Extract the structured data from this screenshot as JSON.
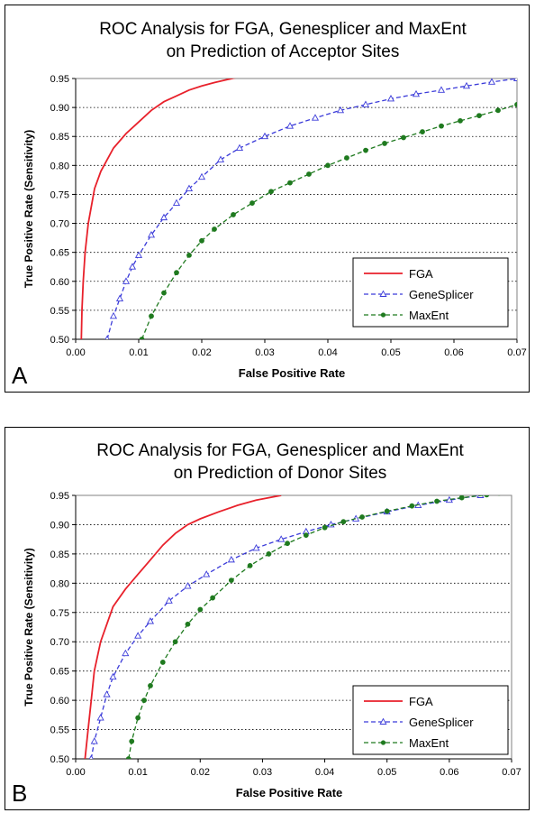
{
  "chart_data": [
    {
      "type": "line",
      "panel_label": "A",
      "title": [
        "ROC Analysis for FGA, Genesplicer and MaxEnt",
        "on Prediction of Acceptor Sites"
      ],
      "xlabel": "False Positive Rate",
      "ylabel": "True Positive Rate (Sensitivity)",
      "xlim": [
        0,
        0.07
      ],
      "ylim": [
        0.5,
        0.95
      ],
      "xticks": [
        "0.00",
        "0.01",
        "0.02",
        "0.03",
        "0.04",
        "0.05",
        "0.06",
        "0.07"
      ],
      "yticks": [
        "0.50",
        "0.55",
        "0.60",
        "0.65",
        "0.70",
        "0.75",
        "0.80",
        "0.85",
        "0.90",
        "0.95"
      ],
      "grid": "horizontal dotted",
      "legend": "bottom-right",
      "series": [
        {
          "name": "FGA",
          "color": "#e8212b",
          "marker": "none",
          "x": [
            0.0009,
            0.001,
            0.0012,
            0.0015,
            0.002,
            0.0025,
            0.003,
            0.004,
            0.005,
            0.006,
            0.008,
            0.01,
            0.012,
            0.014,
            0.016,
            0.018,
            0.02,
            0.022,
            0.024,
            0.026
          ],
          "y": [
            0.5,
            0.55,
            0.6,
            0.65,
            0.7,
            0.73,
            0.76,
            0.79,
            0.81,
            0.83,
            0.855,
            0.875,
            0.895,
            0.91,
            0.92,
            0.93,
            0.937,
            0.943,
            0.948,
            0.953
          ]
        },
        {
          "name": "GeneSplicer",
          "color": "#3b3bd9",
          "marker": "triangle",
          "x": [
            0.005,
            0.006,
            0.007,
            0.008,
            0.009,
            0.01,
            0.012,
            0.014,
            0.016,
            0.018,
            0.02,
            0.023,
            0.026,
            0.03,
            0.034,
            0.038,
            0.042,
            0.046,
            0.05,
            0.054,
            0.058,
            0.062,
            0.066,
            0.07
          ],
          "y": [
            0.5,
            0.54,
            0.57,
            0.6,
            0.625,
            0.645,
            0.68,
            0.71,
            0.735,
            0.76,
            0.78,
            0.81,
            0.83,
            0.85,
            0.868,
            0.882,
            0.895,
            0.905,
            0.915,
            0.923,
            0.93,
            0.937,
            0.944,
            0.95
          ]
        },
        {
          "name": "MaxEnt",
          "color": "#1f7a1f",
          "marker": "circle",
          "x": [
            0.0105,
            0.012,
            0.014,
            0.016,
            0.018,
            0.02,
            0.022,
            0.025,
            0.028,
            0.031,
            0.034,
            0.037,
            0.04,
            0.043,
            0.046,
            0.049,
            0.052,
            0.055,
            0.058,
            0.061,
            0.064,
            0.067,
            0.07
          ],
          "y": [
            0.5,
            0.54,
            0.58,
            0.615,
            0.645,
            0.67,
            0.69,
            0.715,
            0.735,
            0.755,
            0.77,
            0.785,
            0.8,
            0.813,
            0.826,
            0.838,
            0.848,
            0.858,
            0.868,
            0.877,
            0.886,
            0.895,
            0.905
          ]
        }
      ]
    },
    {
      "type": "line",
      "panel_label": "B",
      "title": [
        "ROC Analysis for FGA, Genesplicer and MaxEnt",
        "on Prediction of Donor Sites"
      ],
      "xlabel": "False Positive Rate",
      "ylabel": "True Positive Rate (Sensitivity)",
      "xlim": [
        0,
        0.07
      ],
      "ylim": [
        0.5,
        0.95
      ],
      "xticks": [
        "0.00",
        "0.01",
        "0.02",
        "0.03",
        "0.04",
        "0.05",
        "0.06",
        "0.07"
      ],
      "yticks": [
        "0.50",
        "0.55",
        "0.60",
        "0.65",
        "0.70",
        "0.75",
        "0.80",
        "0.85",
        "0.90",
        "0.95"
      ],
      "grid": "horizontal dotted",
      "legend": "bottom-right",
      "series": [
        {
          "name": "FGA",
          "color": "#e8212b",
          "marker": "none",
          "x": [
            0.0015,
            0.002,
            0.0025,
            0.003,
            0.004,
            0.005,
            0.006,
            0.008,
            0.01,
            0.012,
            0.014,
            0.016,
            0.018,
            0.02,
            0.023,
            0.026,
            0.029,
            0.033
          ],
          "y": [
            0.5,
            0.55,
            0.6,
            0.65,
            0.7,
            0.73,
            0.76,
            0.79,
            0.815,
            0.84,
            0.865,
            0.885,
            0.9,
            0.91,
            0.922,
            0.933,
            0.942,
            0.95
          ]
        },
        {
          "name": "GeneSplicer",
          "color": "#3b3bd9",
          "marker": "triangle",
          "x": [
            0.0025,
            0.003,
            0.004,
            0.005,
            0.006,
            0.008,
            0.01,
            0.012,
            0.015,
            0.018,
            0.021,
            0.025,
            0.029,
            0.033,
            0.037,
            0.041,
            0.045,
            0.05,
            0.055,
            0.06,
            0.065,
            0.068
          ],
          "y": [
            0.5,
            0.53,
            0.57,
            0.61,
            0.64,
            0.68,
            0.71,
            0.735,
            0.77,
            0.795,
            0.815,
            0.84,
            0.86,
            0.875,
            0.888,
            0.9,
            0.91,
            0.922,
            0.933,
            0.942,
            0.95,
            0.955
          ]
        },
        {
          "name": "MaxEnt",
          "color": "#1f7a1f",
          "marker": "circle",
          "x": [
            0.0085,
            0.009,
            0.01,
            0.011,
            0.012,
            0.014,
            0.016,
            0.018,
            0.02,
            0.022,
            0.025,
            0.028,
            0.031,
            0.034,
            0.037,
            0.04,
            0.043,
            0.046,
            0.05,
            0.054,
            0.058,
            0.062,
            0.066,
            0.068
          ],
          "y": [
            0.5,
            0.53,
            0.57,
            0.6,
            0.625,
            0.665,
            0.7,
            0.73,
            0.755,
            0.775,
            0.805,
            0.83,
            0.85,
            0.868,
            0.882,
            0.895,
            0.905,
            0.913,
            0.923,
            0.932,
            0.94,
            0.946,
            0.951,
            0.954
          ]
        }
      ]
    }
  ]
}
